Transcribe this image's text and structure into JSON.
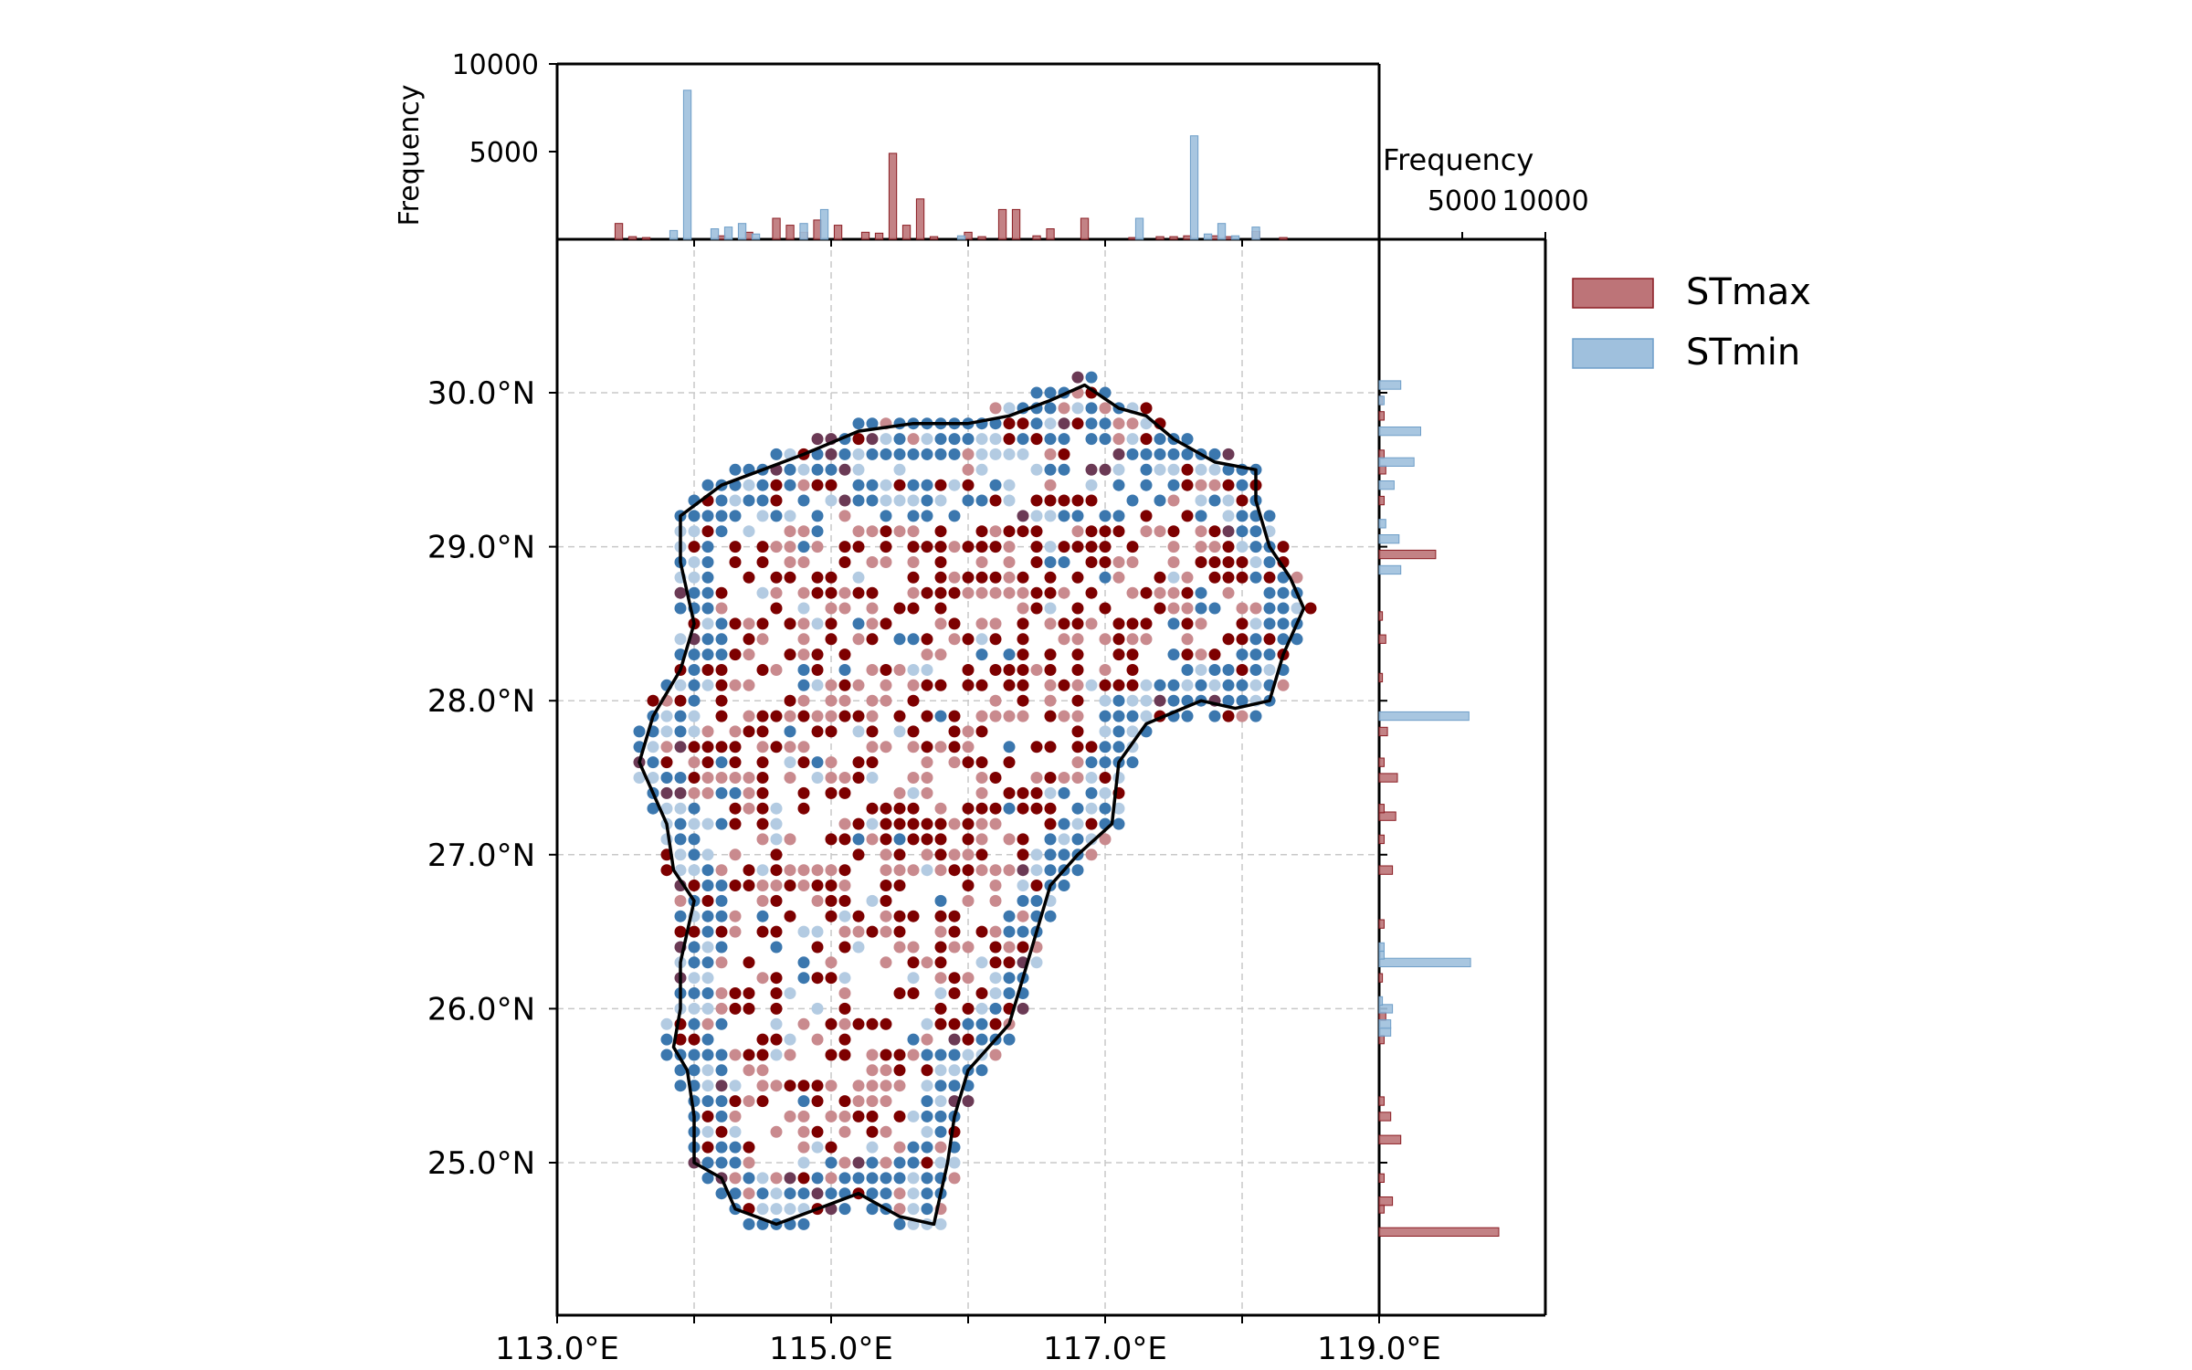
{
  "chart_data": [
    {
      "type": "scatter",
      "role": "main-map",
      "xlim": [
        113.0,
        119.0
      ],
      "ylim": [
        24.0,
        31.0
      ],
      "x_ticks": [
        113.0,
        115.0,
        117.0,
        119.0
      ],
      "x_tick_labels": [
        "113.0°E",
        "115.0°E",
        "117.0°E",
        "119.0°E"
      ],
      "y_ticks": [
        25.0,
        26.0,
        27.0,
        28.0,
        29.0,
        30.0
      ],
      "y_tick_labels": [
        "25.0°N",
        "26.0°N",
        "27.0°N",
        "28.0°N",
        "29.0°N",
        "30.0°N"
      ],
      "grid": true,
      "colors": {
        "stmax_dark": "#7d0000",
        "stmax_light": "#c98a8e",
        "stmin_dark": "#3b77ae",
        "stmin_light": "#b3cbe2",
        "mixed": "#6b3a55",
        "boundary": "#000000",
        "grid": "#c8c8c8"
      },
      "boundary": [
        [
          114.0,
          25.3
        ],
        [
          113.95,
          25.6
        ],
        [
          113.85,
          25.75
        ],
        [
          113.9,
          26.0
        ],
        [
          113.9,
          26.3
        ],
        [
          114.0,
          26.7
        ],
        [
          113.85,
          26.9
        ],
        [
          113.8,
          27.2
        ],
        [
          113.6,
          27.6
        ],
        [
          113.7,
          27.9
        ],
        [
          113.9,
          28.2
        ],
        [
          114.0,
          28.5
        ],
        [
          113.9,
          28.9
        ],
        [
          113.9,
          29.2
        ],
        [
          114.2,
          29.4
        ],
        [
          114.5,
          29.5
        ],
        [
          114.8,
          29.6
        ],
        [
          115.2,
          29.75
        ],
        [
          115.6,
          29.8
        ],
        [
          116.0,
          29.8
        ],
        [
          116.3,
          29.85
        ],
        [
          116.6,
          29.95
        ],
        [
          116.85,
          30.05
        ],
        [
          117.1,
          29.9
        ],
        [
          117.3,
          29.85
        ],
        [
          117.5,
          29.7
        ],
        [
          117.8,
          29.55
        ],
        [
          118.1,
          29.5
        ],
        [
          118.1,
          29.3
        ],
        [
          118.2,
          29.0
        ],
        [
          118.35,
          28.8
        ],
        [
          118.45,
          28.6
        ],
        [
          118.3,
          28.3
        ],
        [
          118.2,
          28.0
        ],
        [
          117.95,
          27.95
        ],
        [
          117.7,
          28.0
        ],
        [
          117.3,
          27.85
        ],
        [
          117.1,
          27.6
        ],
        [
          117.05,
          27.2
        ],
        [
          116.8,
          27.0
        ],
        [
          116.6,
          26.8
        ],
        [
          116.5,
          26.5
        ],
        [
          116.4,
          26.2
        ],
        [
          116.3,
          25.9
        ],
        [
          116.0,
          25.6
        ],
        [
          115.9,
          25.3
        ],
        [
          115.85,
          25.0
        ],
        [
          115.75,
          24.6
        ],
        [
          115.5,
          24.65
        ],
        [
          115.2,
          24.8
        ],
        [
          114.9,
          24.7
        ],
        [
          114.6,
          24.6
        ],
        [
          114.3,
          24.7
        ],
        [
          114.2,
          24.9
        ],
        [
          114.0,
          25.0
        ],
        [
          114.0,
          25.3
        ]
      ],
      "point_grid_step": 0.1
    },
    {
      "type": "bar",
      "role": "top-marginal",
      "ylabel": "Frequency",
      "ylim": [
        0,
        10000
      ],
      "y_ticks": [
        5000,
        10000
      ],
      "y_tick_labels": [
        "5000",
        "10000"
      ],
      "x_ticks": [
        113.0,
        114.0,
        115.0,
        116.0,
        117.0,
        118.0,
        119.0
      ],
      "series": [
        {
          "name": "STmax",
          "x": [
            113.45,
            113.55,
            113.65,
            114.2,
            114.4,
            114.6,
            114.7,
            114.8,
            114.9,
            115.05,
            115.25,
            115.35,
            115.45,
            115.55,
            115.65,
            115.75,
            116.0,
            116.1,
            116.25,
            116.35,
            116.5,
            116.6,
            116.85,
            117.2,
            117.4,
            117.5,
            117.6,
            117.8,
            117.9,
            118.1,
            118.3
          ],
          "values": [
            900,
            150,
            100,
            200,
            400,
            1200,
            800,
            400,
            1100,
            800,
            400,
            350,
            4900,
            800,
            2300,
            150,
            400,
            150,
            1700,
            1700,
            200,
            600,
            1200,
            100,
            150,
            150,
            200,
            200,
            150,
            450,
            100
          ]
        },
        {
          "name": "STmin",
          "x": [
            113.85,
            113.95,
            114.15,
            114.25,
            114.35,
            114.45,
            114.8,
            114.95,
            115.95,
            117.25,
            117.65,
            117.85,
            117.95,
            117.75,
            118.1
          ],
          "values": [
            500,
            8500,
            600,
            700,
            900,
            300,
            900,
            1700,
            200,
            1200,
            5900,
            900,
            200,
            300,
            700
          ]
        }
      ]
    },
    {
      "type": "bar",
      "role": "right-marginal",
      "xlabel": "Frequency",
      "x_ticks": [
        5000,
        10000
      ],
      "x_tick_labels": [
        "5000",
        "10000"
      ],
      "xlim": [
        0,
        10000
      ],
      "series": [
        {
          "name": "STmax",
          "y": [
            24.55,
            24.7,
            24.75,
            24.9,
            25.15,
            25.3,
            25.4,
            25.8,
            25.95,
            26.2,
            26.55,
            26.9,
            27.1,
            27.25,
            27.3,
            27.5,
            27.6,
            27.8,
            28.15,
            28.4,
            28.55,
            28.95,
            29.3,
            29.5,
            29.6,
            29.85,
            29.95
          ],
          "values": [
            7200,
            300,
            800,
            300,
            1300,
            700,
            300,
            300,
            400,
            200,
            300,
            800,
            300,
            1000,
            300,
            1100,
            300,
            500,
            200,
            400,
            200,
            3400,
            300,
            400,
            300,
            300,
            200
          ]
        },
        {
          "name": "STmin",
          "y": [
            25.85,
            25.9,
            26.0,
            26.05,
            26.3,
            26.35,
            26.4,
            27.9,
            28.85,
            29.05,
            29.15,
            29.4,
            29.55,
            29.75,
            29.95,
            30.05
          ],
          "values": [
            700,
            700,
            800,
            200,
            5500,
            300,
            300,
            5400,
            1300,
            1200,
            400,
            900,
            2100,
            2500,
            300,
            1300
          ]
        }
      ]
    },
    {
      "type": "legend",
      "entries": [
        {
          "name": "STmax",
          "color": "#bd7478",
          "edge": "#8a1c22"
        },
        {
          "name": "STmin",
          "color": "#9fc0dd",
          "edge": "#6e9ec8"
        }
      ]
    }
  ]
}
